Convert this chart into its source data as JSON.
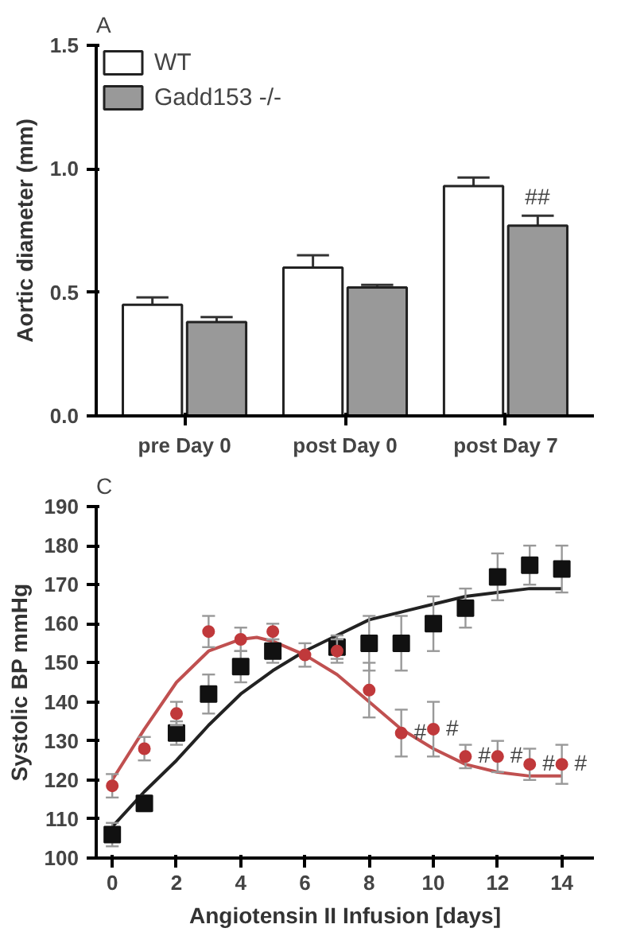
{
  "chart_data": [
    {
      "type": "bar",
      "title": "A",
      "ylabel": "Aortic diameter (mm)",
      "categories": [
        "pre Day 0",
        "post Day 0",
        "post Day 7"
      ],
      "series": [
        {
          "name": "WT",
          "color": "#ffffff",
          "values": [
            0.45,
            0.6,
            0.93
          ],
          "errors": [
            0.03,
            0.05,
            0.035
          ]
        },
        {
          "name": "Gadd153 -/-",
          "color": "#999999",
          "values": [
            0.38,
            0.52,
            0.77
          ],
          "errors": [
            0.02,
            0.01,
            0.04
          ]
        }
      ],
      "ylim": [
        0,
        1.5
      ],
      "yticks": [
        {
          "value": 0,
          "label": "0.0"
        },
        {
          "value": 0.5,
          "label": "0.5"
        },
        {
          "value": 1,
          "label": "1.0"
        },
        {
          "value": 1.5,
          "label": "1.5"
        }
      ],
      "annotations": [
        {
          "text": "##",
          "x": "post Day 7",
          "y": 0.81
        }
      ],
      "legend": "top left",
      "grid": false
    },
    {
      "type": "scatter",
      "title": "C",
      "xlabel": "Angiotensin II Infusion [days]",
      "ylabel": "Systolic BP mmHg",
      "series": [
        {
          "type": "scatter",
          "color": "#111111",
          "marker": "square",
          "x": [
            0,
            1,
            2,
            3,
            4,
            5,
            7,
            8,
            9,
            10,
            11,
            12,
            13,
            14
          ],
          "values": [
            106,
            114,
            132,
            142,
            149,
            153,
            154,
            155,
            155,
            160,
            164,
            172,
            175,
            174
          ],
          "errors": [
            3,
            2,
            3,
            5,
            4,
            3,
            3,
            7,
            7,
            7,
            5,
            6,
            5,
            6
          ]
        },
        {
          "type": "scatter",
          "color": "#c0393b",
          "marker": "circle",
          "x": [
            0,
            1,
            2,
            3,
            4,
            5,
            6,
            7,
            8,
            9,
            10,
            11,
            12,
            13,
            14
          ],
          "values": [
            118.5,
            128,
            137,
            158,
            156,
            158,
            152,
            153,
            143,
            132,
            133,
            126,
            126,
            124,
            124
          ],
          "errors": [
            3,
            3,
            3,
            4,
            3,
            2,
            3,
            3,
            7,
            6,
            7,
            3,
            4,
            4,
            5
          ]
        },
        {
          "type": "line",
          "color": "#222222",
          "x": [
            0,
            1,
            2,
            3,
            4,
            5,
            6,
            7,
            8,
            9,
            10,
            11,
            12,
            13,
            14
          ],
          "values": [
            108,
            117,
            125,
            134,
            142,
            148,
            153,
            157,
            161,
            163,
            165,
            167,
            168,
            169,
            169
          ]
        },
        {
          "type": "line",
          "color": "#c05050",
          "x": [
            0,
            1,
            2,
            3,
            4,
            4.5,
            5,
            6,
            7,
            8,
            9,
            10,
            11,
            12,
            13,
            14
          ],
          "values": [
            120,
            133,
            145,
            153,
            156,
            156.5,
            155.5,
            152,
            147,
            140,
            133,
            128,
            124,
            122,
            121,
            121
          ]
        }
      ],
      "xlim": [
        -0.5,
        15
      ],
      "xticks": [
        0,
        2,
        4,
        6,
        8,
        10,
        12,
        14
      ],
      "ylim": [
        100,
        190
      ],
      "yticks": [
        100,
        110,
        120,
        130,
        140,
        150,
        160,
        170,
        180,
        190
      ],
      "annotations": [
        {
          "text": "#",
          "x": 9,
          "y": 132
        },
        {
          "text": "#",
          "x": 10,
          "y": 133
        },
        {
          "text": "#",
          "x": 11,
          "y": 126
        },
        {
          "text": "#",
          "x": 12,
          "y": 126
        },
        {
          "text": "#",
          "x": 13,
          "y": 124
        },
        {
          "text": "#",
          "x": 14,
          "y": 124
        }
      ],
      "grid": false
    }
  ]
}
